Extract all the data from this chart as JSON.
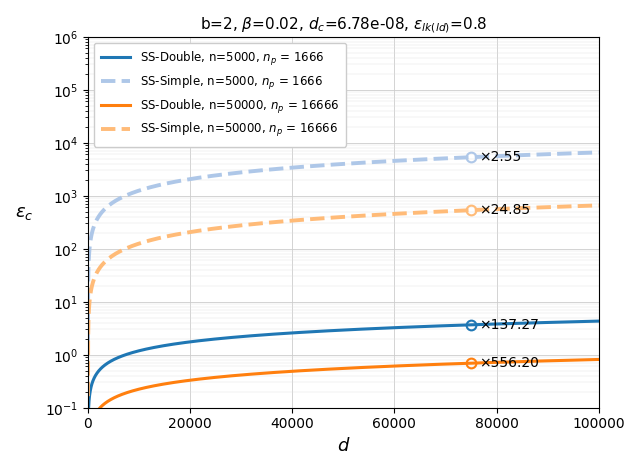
{
  "title": "b=2, $\\beta$=0.02, $d_c$=6.78e-08, $\\varepsilon_{lk(ld)}$=0.8",
  "xlabel": "$d$",
  "ylabel": "$\\varepsilon_c$",
  "xlim": [
    0,
    100000
  ],
  "ylim": [
    0.1,
    1000000
  ],
  "x_ticks": [
    0,
    20000,
    40000,
    60000,
    80000,
    100000
  ],
  "x_tick_labels": [
    "0",
    "20000",
    "40000",
    "60000",
    "80000",
    "100000"
  ],
  "colors": {
    "blue_solid": "#1f77b4",
    "blue_dashed": "#aec7e8",
    "orange_solid": "#ff7f0e",
    "orange_dashed": "#ffbb78"
  },
  "series": [
    {
      "key": "ss_double_5000",
      "label": "SS-Double, n=5000, $n_p$ = 1666",
      "color": "#1f77b4",
      "style": "solid",
      "lw": 2.2
    },
    {
      "key": "ss_simple_5000",
      "label": "SS-Simple, n=5000, $n_p$ = 1666",
      "color": "#aec7e8",
      "style": "dashed",
      "lw": 2.8
    },
    {
      "key": "ss_double_50000",
      "label": "SS-Double, n=50000, $n_p$ = 16666",
      "color": "#ff7f0e",
      "style": "solid",
      "lw": 2.2
    },
    {
      "key": "ss_simple_50000",
      "label": "SS-Simple, n=50000, $n_p$ = 16666",
      "color": "#ffbb78",
      "style": "dashed",
      "lw": 2.8
    }
  ],
  "curve_params": {
    "ss_double_5000": {
      "A": 0.048,
      "alpha": 0.56
    },
    "ss_double_50000": {
      "A": 0.0052,
      "alpha": 0.56
    },
    "ss_simple_5000": {
      "A": 9.5,
      "alpha": 0.72
    },
    "ss_simple_50000": {
      "A": 1.0,
      "alpha": 0.72
    }
  },
  "ann_x": 75000,
  "annotations": [
    {
      "text": "×2.55",
      "series": "ss_simple_5000",
      "color": "#1f77b4"
    },
    {
      "text": "×24.85",
      "series": "ss_simple_50000",
      "color": "#ff7f0e"
    },
    {
      "text": "×137.27",
      "series": "ss_double_5000",
      "color": "#1f77b4"
    },
    {
      "text": "×556.20",
      "series": "ss_double_50000",
      "color": "#ff7f0e"
    }
  ]
}
